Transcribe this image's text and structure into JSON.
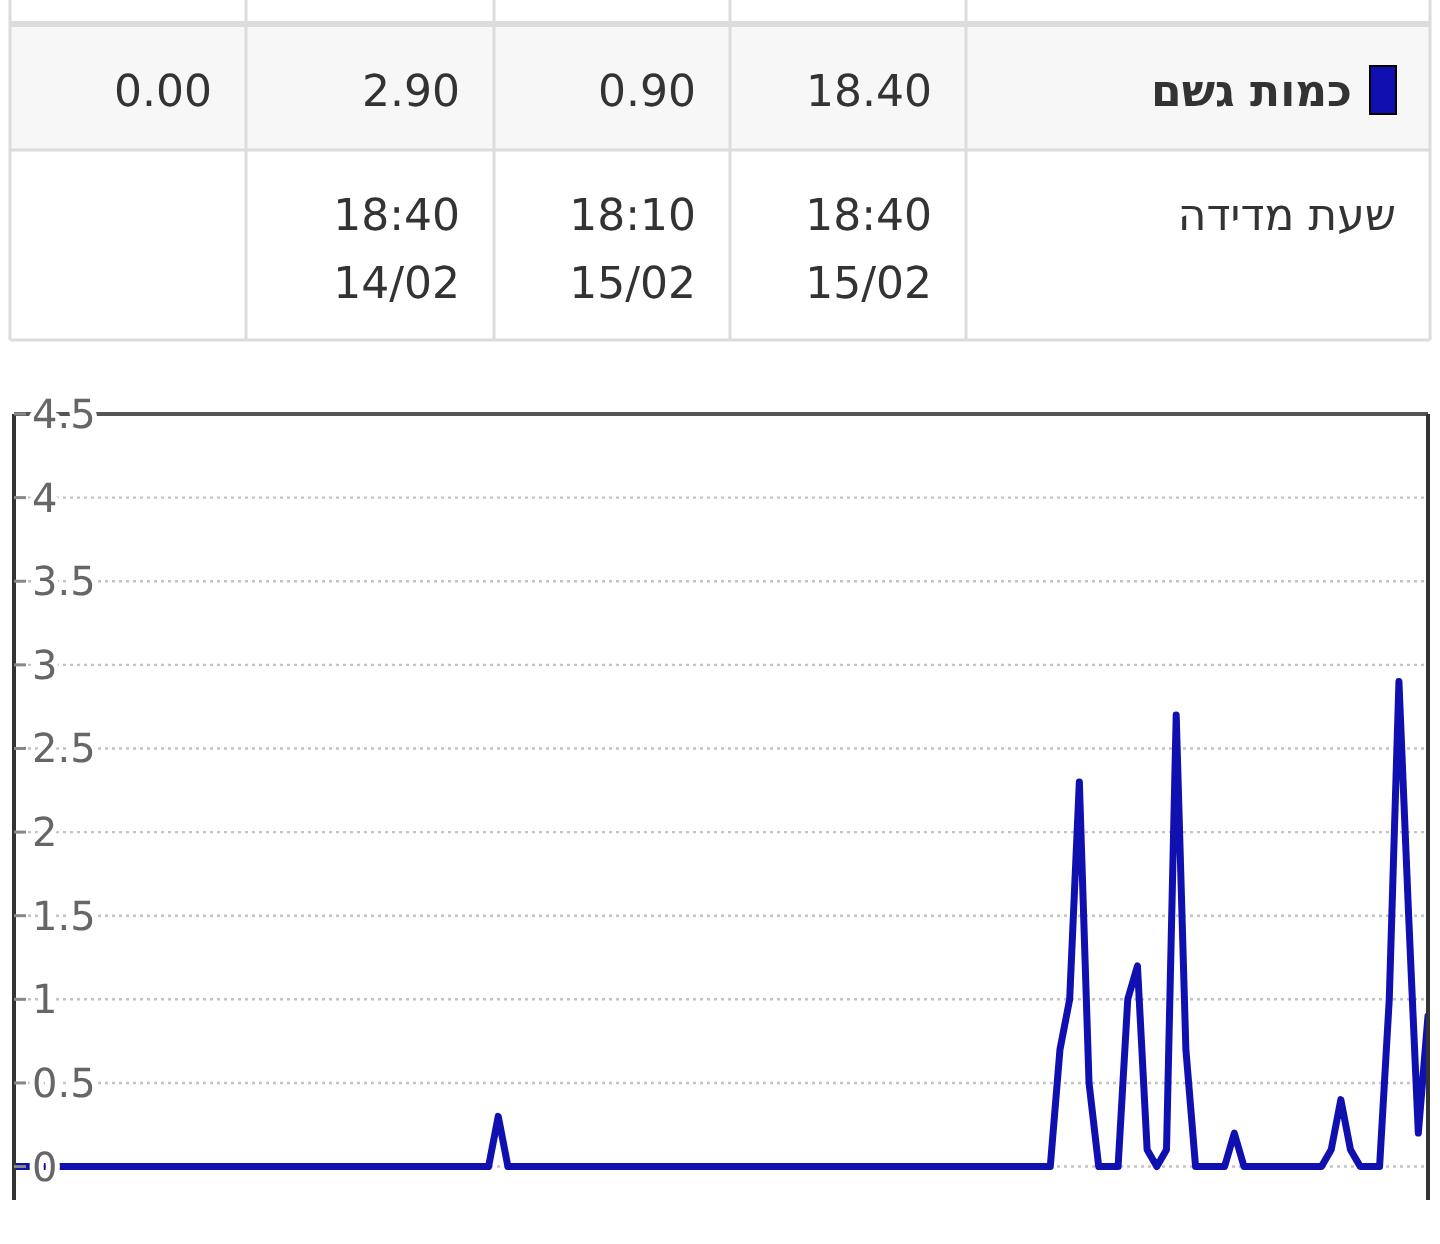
{
  "chart_data": {
    "type": "line",
    "categories": [
      null,
      null,
      null,
      null,
      null,
      null,
      null,
      null,
      null,
      null,
      null,
      null,
      null,
      null,
      null,
      null,
      null,
      null,
      null,
      null,
      null,
      null,
      null,
      null,
      null,
      null,
      null,
      null,
      null,
      null,
      null,
      null,
      null,
      null,
      null,
      null,
      null,
      null,
      null,
      null,
      null,
      null,
      null,
      null,
      null,
      null,
      null,
      null,
      null,
      null,
      null,
      null,
      null,
      null,
      null,
      null,
      null,
      null,
      null,
      null,
      null,
      null,
      null,
      null,
      null,
      null,
      null,
      null,
      null,
      null,
      null,
      null,
      null,
      null,
      null,
      null,
      null,
      null,
      null,
      null,
      null,
      null,
      null,
      null,
      null,
      null,
      null,
      null,
      null,
      null,
      null,
      null,
      null,
      null,
      null,
      null,
      null,
      null,
      null,
      null,
      null,
      null,
      null,
      null,
      null,
      null,
      null,
      null,
      null,
      null,
      null,
      null,
      null,
      null,
      null,
      null,
      null,
      null,
      null,
      null,
      null,
      null,
      null,
      null,
      null,
      null,
      null,
      null,
      null,
      null,
      null,
      null,
      null,
      null,
      null,
      null,
      null,
      null,
      null,
      null,
      null,
      null,
      null,
      null,
      null,
      null,
      null
    ],
    "series": [
      {
        "name": "כמות גשם",
        "color": "#1010b0",
        "values": [
          0,
          0,
          0,
          0,
          0,
          0,
          0,
          0,
          0,
          0,
          0,
          0,
          0,
          0,
          0,
          0,
          0,
          0,
          0,
          0,
          0,
          0,
          0,
          0,
          0,
          0,
          0,
          0,
          0,
          0,
          0,
          0,
          0,
          0,
          0,
          0,
          0,
          0,
          0,
          0,
          0,
          0,
          0,
          0,
          0,
          0,
          0,
          0,
          0,
          0,
          0.3,
          0,
          0,
          0,
          0,
          0,
          0,
          0,
          0,
          0,
          0,
          0,
          0,
          0,
          0,
          0,
          0,
          0,
          0,
          0,
          0,
          0,
          0,
          0,
          0,
          0,
          0,
          0,
          0,
          0,
          0,
          0,
          0,
          0,
          0,
          0,
          0,
          0,
          0,
          0,
          0,
          0,
          0,
          0,
          0,
          0,
          0,
          0,
          0,
          0,
          0,
          0,
          0,
          0,
          0,
          0,
          0,
          0,
          0.7,
          1.0,
          2.3,
          0.5,
          0,
          0,
          0,
          1.0,
          1.2,
          0.1,
          0,
          0.1,
          2.7,
          0.7,
          0,
          0,
          0,
          0,
          0.2,
          0,
          0,
          0,
          0,
          0,
          0,
          0,
          0,
          0,
          0.1,
          0.4,
          0.1,
          0,
          0,
          0,
          1.0,
          2.9,
          1.5,
          0.2,
          0.9
        ]
      }
    ],
    "ylim": [
      -0.2,
      4.5
    ],
    "yticks": [
      0,
      0.5,
      1,
      1.5,
      2,
      2.5,
      3,
      3.5,
      4,
      4.5
    ],
    "tick_labels": "y",
    "grid": "y",
    "legend": "top",
    "annotations": [
      "18.40",
      "0.90",
      "2.90",
      "0.00",
      "שעת מדידה",
      "18:40 15/02",
      "18:10 15/02",
      "18:40 14/02"
    ]
  }
}
